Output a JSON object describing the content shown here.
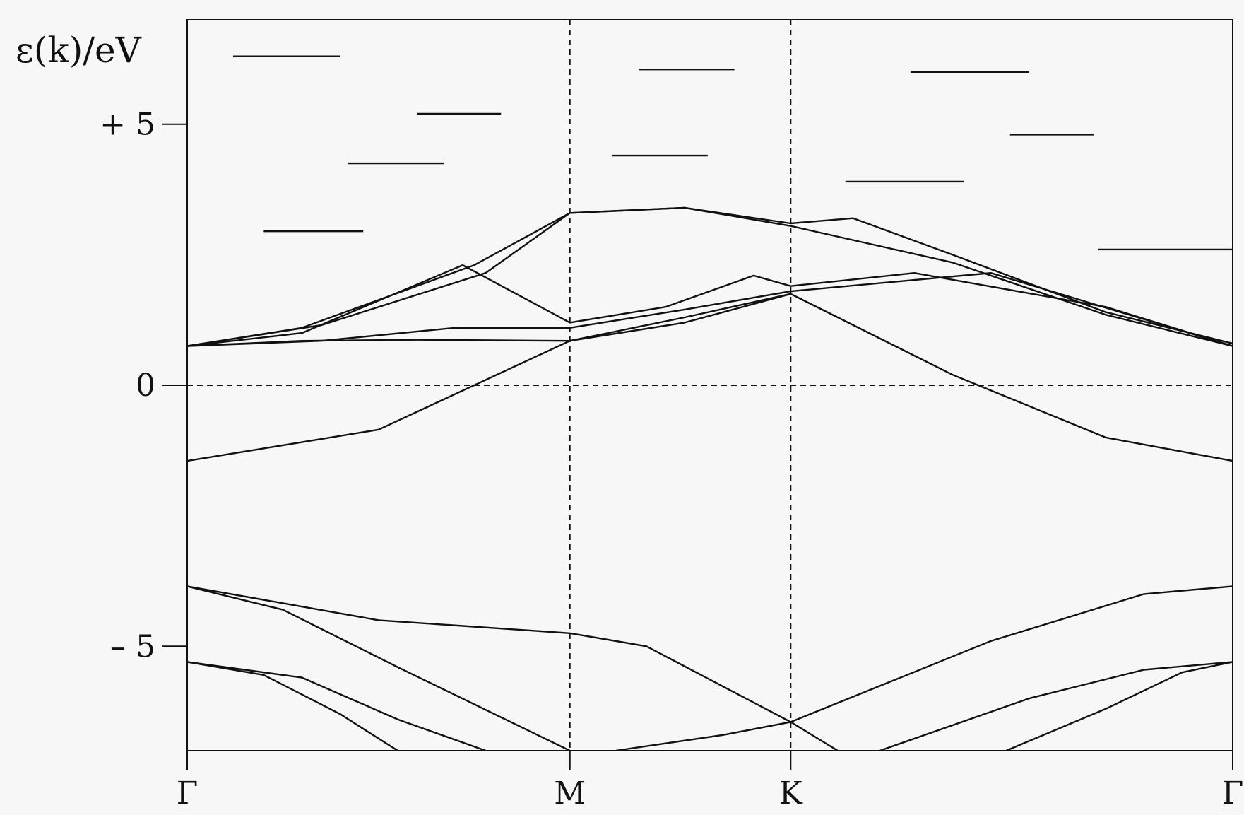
{
  "chart_data": {
    "type": "line",
    "ylabel": "ε(k)/eV",
    "xlabel": "",
    "x_ticks": [
      {
        "label": "Γ",
        "x": 0
      },
      {
        "label": "M",
        "x": 1
      },
      {
        "label": "K",
        "x": 1.577
      },
      {
        "label": "Γ",
        "x": 2.732
      }
    ],
    "y_ticks": [
      {
        "label": "+ 5",
        "y": 5
      },
      {
        "label": "0",
        "y": 0
      },
      {
        "label": "– 5",
        "y": -5
      }
    ],
    "xlim": [
      0,
      2.732
    ],
    "ylim": [
      -7,
      7
    ],
    "reference_line_y": 0,
    "vertical_lines_x": [
      1,
      1.577
    ],
    "grid": false,
    "series": [
      {
        "x": [
          0,
          0.5,
          1,
          1.3,
          1.577,
          2.0,
          2.4,
          2.732
        ],
        "y": [
          -1.45,
          -0.85,
          0.85,
          1.3,
          1.75,
          0.2,
          -1.0,
          -1.45
        ]
      },
      {
        "x": [
          0,
          0.3,
          0.6,
          1,
          1.3,
          1.577
        ],
        "y": [
          0.75,
          0.85,
          0.87,
          0.85,
          1.2,
          1.75
        ]
      },
      {
        "x": [
          0,
          0.3,
          0.6,
          0.75,
          1,
          1.3,
          1.577,
          1.74,
          2.0,
          2.4,
          2.732
        ],
        "y": [
          0.75,
          1.1,
          1.9,
          2.3,
          3.3,
          3.4,
          3.1,
          3.2,
          2.5,
          1.4,
          0.8
        ]
      },
      {
        "x": [
          0,
          0.3,
          0.72,
          1,
          1.25,
          1.48,
          1.577,
          1.9,
          2.4,
          2.732
        ],
        "y": [
          0.75,
          1.0,
          2.3,
          1.2,
          1.5,
          2.1,
          1.9,
          2.15,
          1.5,
          0.75
        ]
      },
      {
        "x": [
          0,
          0.35,
          0.78,
          1,
          1.3,
          1.577,
          2.0,
          2.4,
          2.732
        ],
        "y": [
          0.75,
          1.15,
          2.15,
          3.3,
          3.4,
          3.05,
          2.35,
          1.35,
          0.75
        ]
      },
      {
        "x": [
          0,
          0.35,
          0.7,
          1,
          1.3,
          1.577,
          2.1,
          2.732
        ],
        "y": [
          0.75,
          0.85,
          1.1,
          1.1,
          1.45,
          1.8,
          2.15,
          0.75
        ]
      },
      {
        "x": [
          0,
          0.5,
          1,
          1.2,
          1.577,
          1.7
        ],
        "y": [
          -3.85,
          -4.5,
          -4.75,
          -5.0,
          -6.45,
          -7.0
        ]
      },
      {
        "x": [
          0,
          0.25,
          0.55,
          1
        ],
        "y": [
          -3.85,
          -4.3,
          -5.4,
          -7.0
        ]
      },
      {
        "x": [
          0,
          0.3,
          0.55,
          0.78
        ],
        "y": [
          -5.3,
          -5.6,
          -6.4,
          -7.0
        ]
      },
      {
        "x": [
          0,
          0.2,
          0.4,
          0.55
        ],
        "y": [
          -5.3,
          -5.55,
          -6.3,
          -7.0
        ]
      },
      {
        "x": [
          1.12,
          1.4,
          1.577,
          2.1,
          2.5,
          2.732
        ],
        "y": [
          -7.0,
          -6.7,
          -6.45,
          -4.9,
          -4.0,
          -3.85
        ]
      },
      {
        "x": [
          1.81,
          2.2,
          2.5,
          2.732
        ],
        "y": [
          -7.0,
          -6.0,
          -5.45,
          -5.3
        ]
      },
      {
        "x": [
          2.14,
          2.4,
          2.6,
          2.732
        ],
        "y": [
          -7.0,
          -6.2,
          -5.5,
          -5.3
        ]
      }
    ],
    "segments": [
      {
        "x": [
          0.12,
          0.4
        ],
        "y": [
          6.3,
          6.3
        ]
      },
      {
        "x": [
          0.2,
          0.46
        ],
        "y": [
          2.95,
          2.95
        ]
      },
      {
        "x": [
          0.42,
          0.67
        ],
        "y": [
          4.25,
          4.25
        ]
      },
      {
        "x": [
          0.6,
          0.82
        ],
        "y": [
          5.2,
          5.2
        ]
      },
      {
        "x": [
          1.11,
          1.36
        ],
        "y": [
          4.4,
          4.4
        ]
      },
      {
        "x": [
          1.18,
          1.43
        ],
        "y": [
          6.05,
          6.05
        ]
      },
      {
        "x": [
          1.72,
          2.03
        ],
        "y": [
          3.9,
          3.9
        ]
      },
      {
        "x": [
          1.89,
          2.2
        ],
        "y": [
          6.0,
          6.0
        ]
      },
      {
        "x": [
          2.15,
          2.37
        ],
        "y": [
          4.8,
          4.8
        ]
      },
      {
        "x": [
          2.38,
          2.73
        ],
        "y": [
          2.6,
          2.6
        ]
      }
    ]
  }
}
